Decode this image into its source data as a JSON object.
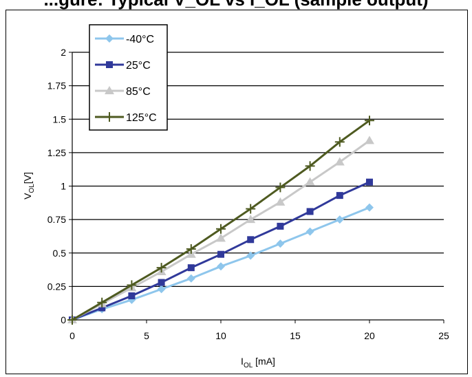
{
  "header": {
    "title": "...gure: Typical V_OL vs I_OL (sample output)"
  },
  "chart_data": {
    "type": "line",
    "title": "",
    "xlabel_main": "I",
    "xlabel_sub": "OL",
    "xlabel_unit": " [mA]",
    "ylabel_main": "V",
    "ylabel_sub": "OL",
    "ylabel_unit": "[V]",
    "xlim": [
      0,
      25
    ],
    "ylim": [
      0,
      2
    ],
    "xticks": [
      "0",
      "5",
      "10",
      "15",
      "20",
      "25"
    ],
    "yticks": [
      "0",
      "0.25",
      "0.5",
      "0.75",
      "1",
      "1.25",
      "1.5",
      "1.75",
      "2"
    ],
    "grid": "horizontal",
    "legend_position": "top-left",
    "x": [
      0,
      2,
      4,
      6,
      8,
      10,
      12,
      14,
      16,
      18,
      20
    ],
    "series": [
      {
        "name": "-40°C",
        "color": "#8ec6ec",
        "marker": "diamond",
        "values": [
          0,
          0.08,
          0.15,
          0.23,
          0.31,
          0.4,
          0.48,
          0.57,
          0.66,
          0.75,
          0.84
        ]
      },
      {
        "name": "25°C",
        "color": "#30399a",
        "marker": "square",
        "values": [
          0,
          0.09,
          0.18,
          0.28,
          0.39,
          0.49,
          0.6,
          0.7,
          0.81,
          0.93,
          1.03
        ]
      },
      {
        "name": "85°C",
        "color": "#c8c8c8",
        "marker": "triangle",
        "values": [
          0,
          0.12,
          0.24,
          0.36,
          0.49,
          0.61,
          0.75,
          0.88,
          1.03,
          1.18,
          1.34
        ]
      },
      {
        "name": "125°C",
        "color": "#4e5a20",
        "marker": "plus",
        "values": [
          0,
          0.13,
          0.26,
          0.39,
          0.53,
          0.68,
          0.83,
          0.99,
          1.15,
          1.33,
          1.49
        ]
      }
    ]
  }
}
